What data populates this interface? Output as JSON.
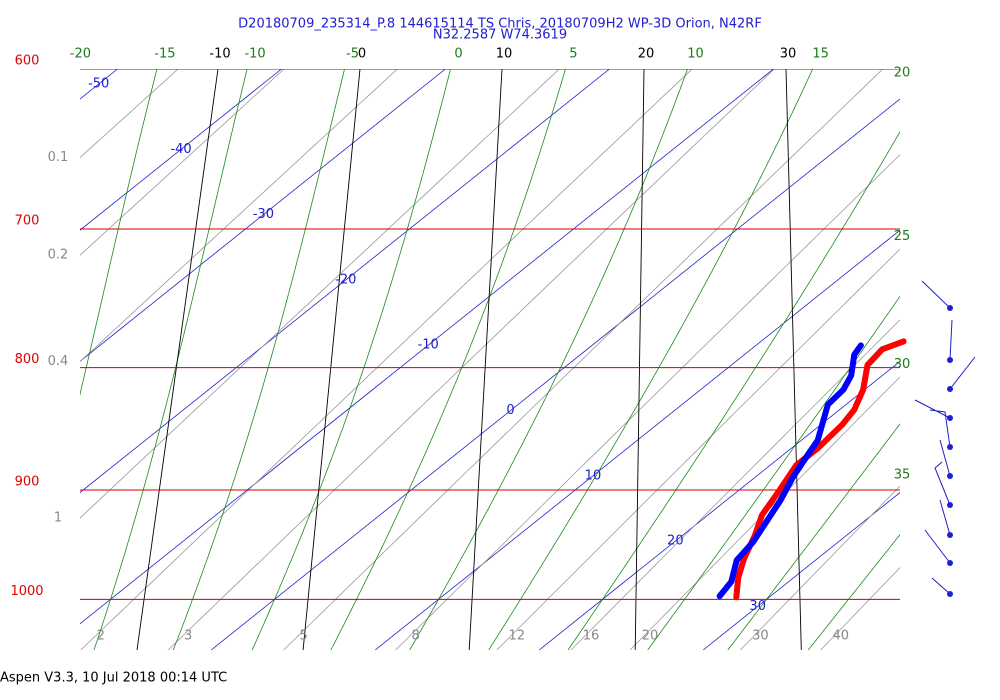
{
  "chart_data": {
    "type": "skewt",
    "title": "D20180709_235314_P.8 144615114 TS Chris, 20180709H2 WP-3D Orion, N42RF",
    "subtitle": "N32.2587 W74.3619",
    "footer": "Aspen V3.3, 10 Jul 2018  00:14 UTC",
    "ylim": [
      1050,
      600
    ],
    "log_y": true,
    "yticks": [
      600,
      700,
      800,
      900,
      1000
    ],
    "xlim": [
      -8,
      42
    ],
    "isotherms": [
      -50,
      -40,
      -30,
      -20,
      -10,
      0,
      10,
      20,
      30
    ],
    "dry_adiabats": [
      -10,
      0,
      10,
      20,
      30
    ],
    "moist_adiabats": [
      -20,
      -15,
      -10,
      -5,
      0,
      5,
      10,
      15,
      20,
      25,
      30,
      35
    ],
    "mixing_ratios": [
      0.1,
      0.2,
      0.4,
      1,
      2,
      3,
      5,
      8,
      12,
      16,
      20,
      30,
      40
    ],
    "series": [
      {
        "color": "#ff0000",
        "x": [
          998,
          979,
          961,
          940,
          922,
          906,
          891,
          879,
          864,
          845,
          833,
          817,
          798,
          786,
          780
        ],
        "values": [
          28.0,
          26.6,
          25.5,
          24.4,
          23.3,
          22.7,
          22.1,
          21.6,
          21.6,
          21.3,
          20.9,
          19.9,
          18.3,
          18.0,
          18.7
        ]
      },
      {
        "color": "#0000ff",
        "x": [
          997,
          983,
          963,
          946,
          926,
          909,
          889,
          870,
          858,
          829,
          817,
          806,
          790,
          783
        ],
        "values": [
          26.9,
          26.5,
          25.2,
          24.8,
          24.0,
          23.3,
          22.3,
          21.5,
          21.0,
          18.9,
          18.7,
          18.1,
          16.7,
          16.4
        ]
      }
    ]
  }
}
